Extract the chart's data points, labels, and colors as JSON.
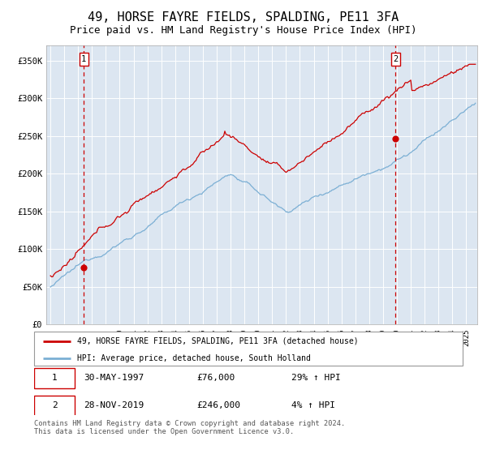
{
  "title": "49, HORSE FAYRE FIELDS, SPALDING, PE11 3FA",
  "subtitle": "Price paid vs. HM Land Registry's House Price Index (HPI)",
  "title_fontsize": 11,
  "subtitle_fontsize": 9,
  "ylim": [
    0,
    370000
  ],
  "yticks": [
    0,
    50000,
    100000,
    150000,
    200000,
    250000,
    300000,
    350000
  ],
  "ytick_labels": [
    "£0",
    "£50K",
    "£100K",
    "£150K",
    "£200K",
    "£250K",
    "£300K",
    "£350K"
  ],
  "xlim_start": 1994.7,
  "xlim_end": 2025.8,
  "plot_bg_color": "#dce6f1",
  "red_line_color": "#cc0000",
  "blue_line_color": "#7bafd4",
  "marker_color": "#cc0000",
  "dashed_line_color": "#cc0000",
  "purchase1_x": 1997.41,
  "purchase1_y": 76000,
  "purchase2_x": 2019.91,
  "purchase2_y": 246000,
  "legend_line1": "49, HORSE FAYRE FIELDS, SPALDING, PE11 3FA (detached house)",
  "legend_line2": "HPI: Average price, detached house, South Holland",
  "table_row1": [
    "1",
    "30-MAY-1997",
    "£76,000",
    "29% ↑ HPI"
  ],
  "table_row2": [
    "2",
    "28-NOV-2019",
    "£246,000",
    "4% ↑ HPI"
  ],
  "footnote": "Contains HM Land Registry data © Crown copyright and database right 2024.\nThis data is licensed under the Open Government Licence v3.0."
}
